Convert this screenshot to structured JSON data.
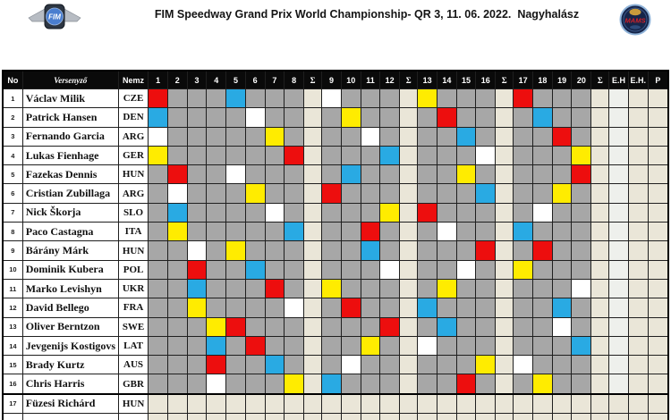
{
  "header": {
    "title": "FIM Speedway Grand Prix World Championship- QR 3, 11. 06. 2022.  Nagyhalász",
    "fim_logo_text": "FIM",
    "mams_logo_text": "MAMS"
  },
  "table": {
    "columns": {
      "no": "No",
      "rider": "Versenyző",
      "nation": "Nemz",
      "sum": "Σ",
      "extra": [
        "E.H",
        "E.H.",
        "P"
      ]
    },
    "heat_count": 20,
    "separators_after": [
      8,
      12,
      16,
      20
    ],
    "colors": {
      "helmet": {
        "R": "#ed0e0e",
        "B": "#29aae3",
        "W": "#ffffff",
        "Y": "#ffec00"
      },
      "grid_default": "#a7a7a7",
      "inactive": "#eae6d8",
      "eh_column": "#eef0ec",
      "header_bg": "#0a0a0a",
      "gridline": "#1f1f1f"
    },
    "riders": [
      {
        "no": "1",
        "name": "Václav Milik",
        "nation": "CZE",
        "active": true,
        "heats": {
          "1": "R",
          "5": "B",
          "9": "W",
          "13": "Y",
          "17": "R"
        }
      },
      {
        "no": "2",
        "name": "Patrick Hansen",
        "nation": "DEN",
        "active": true,
        "heats": {
          "1": "B",
          "6": "W",
          "10": "Y",
          "14": "R",
          "18": "B"
        }
      },
      {
        "no": "3",
        "name": "Fernando Garcia",
        "nation": "ARG",
        "active": true,
        "heats": {
          "1": "W",
          "7": "Y",
          "11": "W",
          "15": "B",
          "19": "R"
        }
      },
      {
        "no": "4",
        "name": "Lukas Fienhage",
        "nation": "GER",
        "active": true,
        "heats": {
          "1": "Y",
          "8": "R",
          "12": "B",
          "16": "W",
          "20": "Y"
        }
      },
      {
        "no": "5",
        "name": "Fazekas Dennis",
        "nation": "HUN",
        "active": true,
        "heats": {
          "2": "R",
          "5": "W",
          "10": "B",
          "15": "Y",
          "20": "R"
        }
      },
      {
        "no": "6",
        "name": "Cristian Zubillaga",
        "nation": "ARG",
        "active": true,
        "heats": {
          "2": "W",
          "6": "Y",
          "9": "R",
          "16": "B",
          "19": "Y"
        }
      },
      {
        "no": "7",
        "name": "Nick Škorja",
        "nation": "SLO",
        "active": true,
        "heats": {
          "2": "B",
          "7": "W",
          "12": "Y",
          "13": "R",
          "18": "W"
        }
      },
      {
        "no": "8",
        "name": "Paco Castagna",
        "nation": "ITA",
        "active": true,
        "heats": {
          "2": "Y",
          "8": "B",
          "11": "R",
          "14": "W",
          "17": "B"
        }
      },
      {
        "no": "9",
        "name": "Bárány Márk",
        "nation": "HUN",
        "active": true,
        "heats": {
          "3": "W",
          "5": "Y",
          "11": "B",
          "16": "R",
          "18": "R"
        }
      },
      {
        "no": "10",
        "name": "Dominik Kubera",
        "nation": "POL",
        "active": true,
        "heats": {
          "3": "R",
          "6": "B",
          "12": "W",
          "15": "W",
          "17": "Y"
        }
      },
      {
        "no": "11",
        "name": "Marko Levishyn",
        "nation": "UKR",
        "active": true,
        "heats": {
          "3": "B",
          "7": "R",
          "9": "Y",
          "14": "Y",
          "20": "W"
        }
      },
      {
        "no": "12",
        "name": "David Bellego",
        "nation": "FRA",
        "active": true,
        "heats": {
          "3": "Y",
          "8": "W",
          "10": "R",
          "13": "B",
          "19": "B"
        }
      },
      {
        "no": "13",
        "name": "Oliver Berntzon",
        "nation": "SWE",
        "active": true,
        "heats": {
          "4": "Y",
          "5": "R",
          "12": "R",
          "14": "B",
          "19": "W"
        }
      },
      {
        "no": "14",
        "name": "Jevgenijs Kostigovs",
        "nation": "LAT",
        "active": true,
        "heats": {
          "4": "B",
          "6": "R",
          "11": "Y",
          "13": "W",
          "20": "B"
        }
      },
      {
        "no": "15",
        "name": "Brady Kurtz",
        "nation": "AUS",
        "active": true,
        "heats": {
          "4": "R",
          "7": "B",
          "10": "W",
          "16": "Y",
          "17": "W"
        }
      },
      {
        "no": "16",
        "name": "Chris Harris",
        "nation": "GBR",
        "active": true,
        "heats": {
          "4": "W",
          "8": "Y",
          "9": "B",
          "15": "R",
          "18": "Y"
        }
      },
      {
        "no": "17",
        "name": "Füzesi Richárd",
        "nation": "HUN",
        "active": false,
        "heats": {}
      },
      {
        "no": "18",
        "name": "",
        "nation": "",
        "active": false,
        "heats": {}
      }
    ]
  }
}
